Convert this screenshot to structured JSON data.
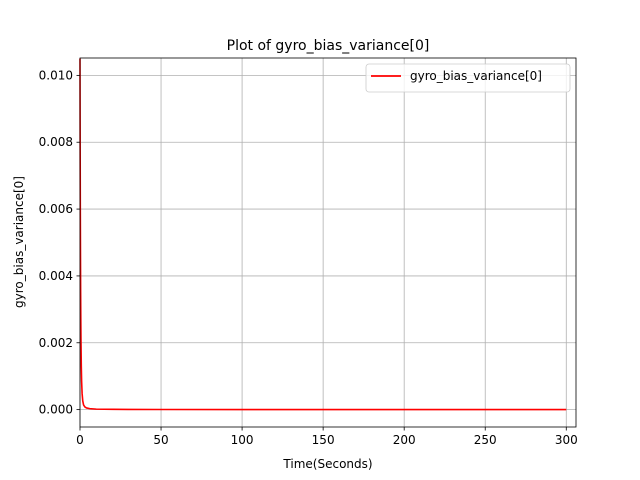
{
  "chart_data": {
    "type": "line",
    "title": "Plot of gyro_bias_variance[0]",
    "xlabel": "Time(Seconds)",
    "ylabel": "gyro_bias_variance[0]",
    "xlim": [
      0,
      306
    ],
    "ylim": [
      -0.00052,
      0.01052
    ],
    "xticks": [
      0,
      50,
      100,
      150,
      200,
      250,
      300
    ],
    "xtick_labels": [
      "0",
      "50",
      "100",
      "150",
      "200",
      "250",
      "300"
    ],
    "yticks": [
      0.0,
      0.002,
      0.004,
      0.006,
      0.008,
      0.01
    ],
    "ytick_labels": [
      "0.000",
      "0.002",
      "0.004",
      "0.006",
      "0.008",
      "0.010"
    ],
    "grid": true,
    "legend_position": "top-right",
    "series": [
      {
        "name": "gyro_bias_variance[0]",
        "color": "#ff0000",
        "x": [
          0,
          0.1,
          0.2,
          0.3,
          0.4,
          0.5,
          0.6,
          0.8,
          1.0,
          1.3,
          1.7,
          2.2,
          3.0,
          4.0,
          6.0,
          10.0,
          20.0,
          50.0,
          100.0,
          150.0,
          200.0,
          250.0,
          300.0
        ],
        "y": [
          0.0105,
          0.0079,
          0.006,
          0.0046,
          0.0035,
          0.0027,
          0.0021,
          0.0013,
          0.00085,
          0.00048,
          0.00026,
          0.00014,
          8e-05,
          5e-05,
          3e-05,
          1.5e-05,
          8e-06,
          4e-06,
          2e-06,
          1.5e-06,
          1.2e-06,
          1e-06,
          1e-06
        ]
      }
    ]
  }
}
